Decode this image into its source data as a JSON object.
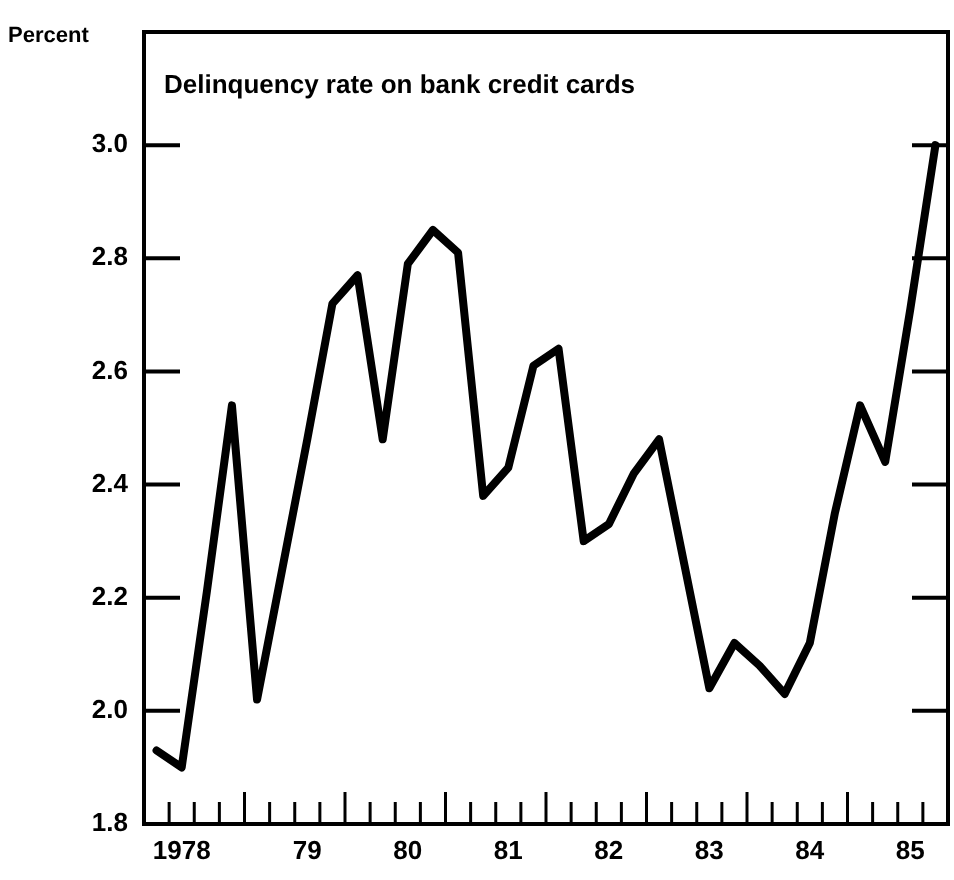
{
  "chart_data": {
    "type": "line",
    "title": "Delinquency rate on bank credit cards",
    "ylabel": "Percent",
    "color": "#000000",
    "marker": "none",
    "line_style": "solid",
    "grid": false,
    "legend": false,
    "categories": [
      null,
      "1978",
      null,
      null,
      null,
      null,
      "79",
      null,
      null,
      null,
      "80",
      null,
      null,
      null,
      "81",
      null,
      null,
      null,
      "82",
      null,
      null,
      null,
      "83",
      null,
      null,
      null,
      "84",
      null,
      null,
      null,
      "85",
      null
    ],
    "values": [
      1.93,
      1.9,
      2.21,
      2.54,
      2.02,
      2.25,
      2.48,
      2.72,
      2.77,
      2.48,
      2.79,
      2.85,
      2.81,
      2.38,
      2.43,
      2.61,
      2.64,
      2.3,
      2.33,
      2.42,
      2.48,
      2.26,
      2.04,
      2.12,
      2.08,
      2.03,
      2.12,
      2.35,
      2.54,
      2.44,
      2.71,
      3.0
    ],
    "ylim": [
      1.8,
      3.2
    ],
    "yticks": [
      1.8,
      {
        "value": 2,
        "label": "2.0"
      },
      2.2,
      2.4,
      2.6,
      2.8,
      {
        "value": 3,
        "label": "3.0"
      }
    ]
  }
}
